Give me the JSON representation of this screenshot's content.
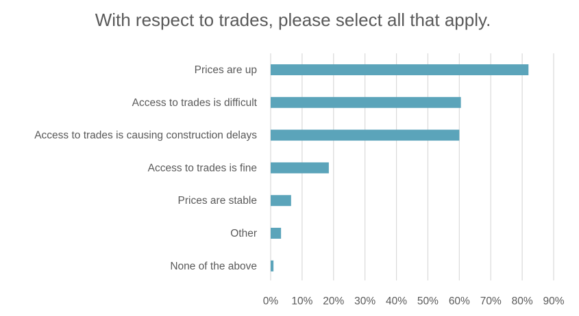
{
  "chart_data": {
    "type": "bar",
    "orientation": "horizontal",
    "title": "With respect to trades, please select all that apply.",
    "categories": [
      "Prices are up",
      "Access to trades is difficult",
      "Access to trades is causing construction delays",
      "Access to trades is fine",
      "Prices are stable",
      "Other",
      "None of the above"
    ],
    "values": [
      82,
      60.5,
      60,
      18.5,
      6.5,
      3.3,
      0.9
    ],
    "value_unit": "%",
    "xlim": [
      0,
      90
    ],
    "ticks": [
      "0%",
      "10%",
      "20%",
      "30%",
      "40%",
      "50%",
      "60%",
      "70%",
      "80%",
      "90%"
    ],
    "grid": "vertical",
    "colors": {
      "bar": "#5ba4ba",
      "grid": "#d9d9d9",
      "text": "#595959"
    }
  }
}
